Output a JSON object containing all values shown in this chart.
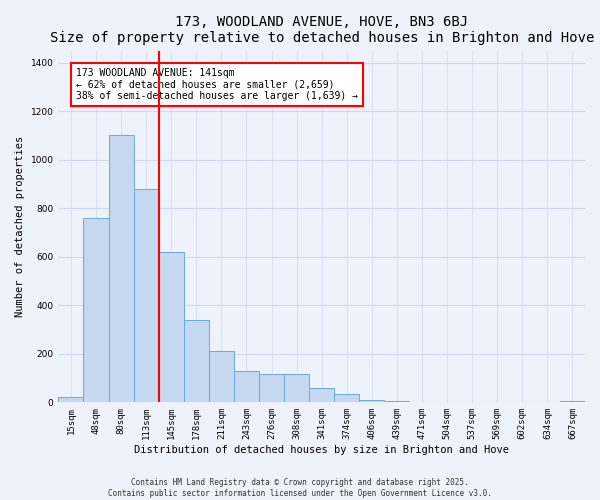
{
  "title": "173, WOODLAND AVENUE, HOVE, BN3 6BJ",
  "subtitle": "Size of property relative to detached houses in Brighton and Hove",
  "xlabel": "Distribution of detached houses by size in Brighton and Hove",
  "ylabel": "Number of detached properties",
  "categories": [
    "15sqm",
    "48sqm",
    "80sqm",
    "113sqm",
    "145sqm",
    "178sqm",
    "211sqm",
    "243sqm",
    "276sqm",
    "308sqm",
    "341sqm",
    "374sqm",
    "406sqm",
    "439sqm",
    "471sqm",
    "504sqm",
    "537sqm",
    "569sqm",
    "602sqm",
    "634sqm",
    "667sqm"
  ],
  "values": [
    20,
    760,
    1100,
    880,
    620,
    340,
    210,
    130,
    115,
    115,
    60,
    35,
    10,
    5,
    3,
    1,
    0,
    0,
    0,
    0,
    5
  ],
  "bar_color": "#c5d8f0",
  "bar_edge_color": "#6aaad4",
  "red_line_index": 3.5,
  "annotation_text": "173 WOODLAND AVENUE: 141sqm\n← 62% of detached houses are smaller (2,659)\n38% of semi-detached houses are larger (1,639) →",
  "annotation_box_color": "white",
  "annotation_box_edge": "red",
  "ylim": [
    0,
    1450
  ],
  "yticks": [
    0,
    200,
    400,
    600,
    800,
    1000,
    1200,
    1400
  ],
  "footer_line1": "Contains HM Land Registry data © Crown copyright and database right 2025.",
  "footer_line2": "Contains public sector information licensed under the Open Government Licence v3.0.",
  "background_color": "#eef2fb",
  "grid_color": "#d0d8ee",
  "title_fontsize": 10,
  "axis_label_fontsize": 7.5,
  "tick_fontsize": 6.5,
  "annotation_fontsize": 7,
  "footer_fontsize": 5.5
}
